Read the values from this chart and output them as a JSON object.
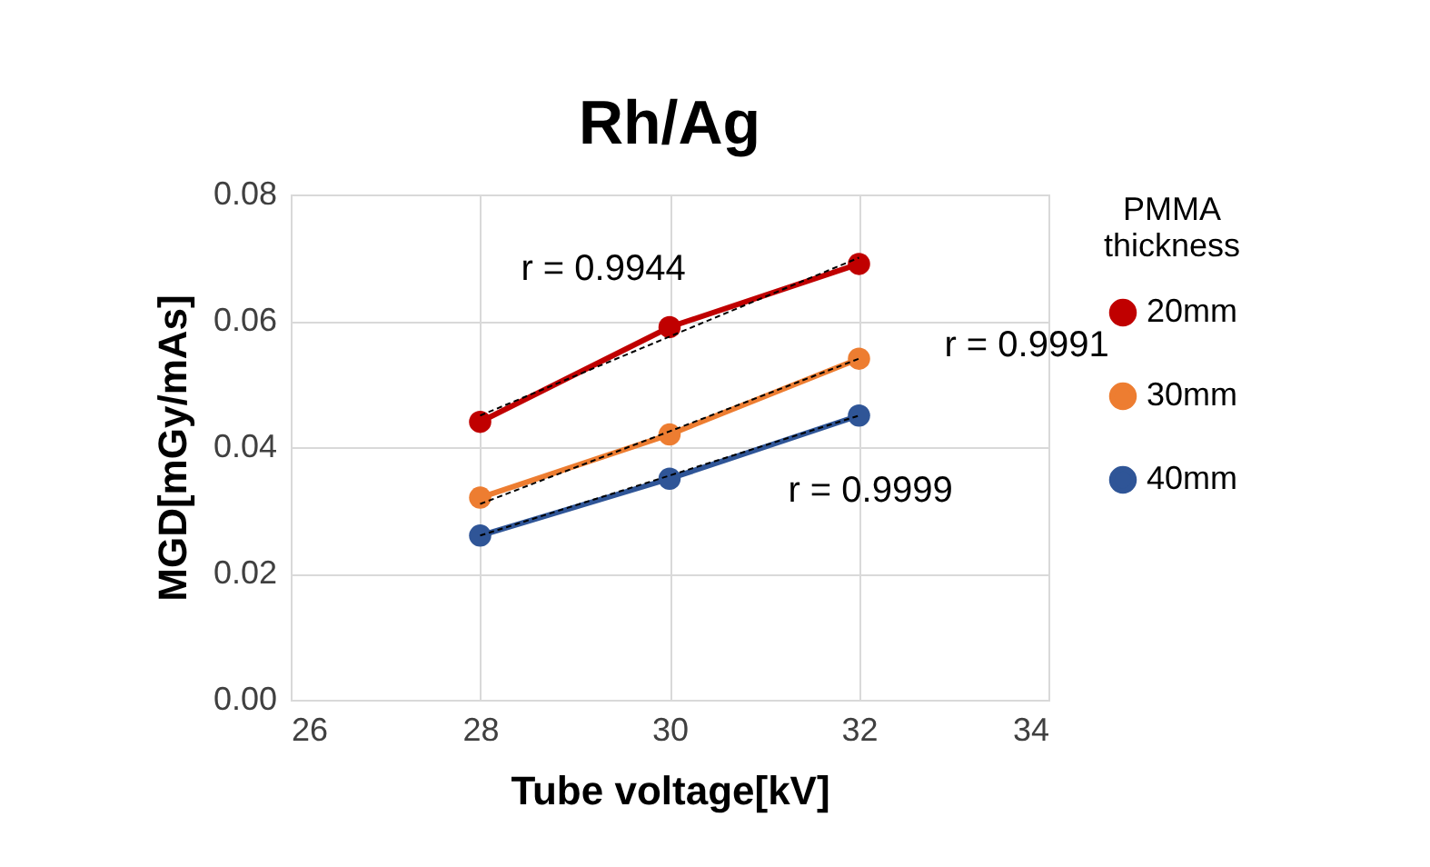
{
  "chart_data": {
    "type": "line",
    "title": "Rh/Ag",
    "xlabel": "Tube voltage[kV]",
    "ylabel": "MGD[mGy/mAs]",
    "legend_title": "PMMA thickness",
    "x": [
      28,
      30,
      32
    ],
    "series": [
      {
        "name": "20mm",
        "color": "#c00000",
        "values": [
          0.044,
          0.059,
          0.069
        ]
      },
      {
        "name": "30mm",
        "color": "#ed7d31",
        "values": [
          0.032,
          0.042,
          0.054
        ]
      },
      {
        "name": "40mm",
        "color": "#2f5597",
        "values": [
          0.026,
          0.035,
          0.045
        ]
      },
      {
        "type": "line",
        "color": "#000000",
        "line_style": "dashed",
        "marker": "none",
        "values": [
          0.045,
          0.0575,
          0.07
        ]
      },
      {
        "type": "line",
        "color": "#000000",
        "line_style": "dashed",
        "marker": "none",
        "values": [
          0.031,
          0.0425,
          0.054
        ]
      },
      {
        "type": "line",
        "color": "#000000",
        "line_style": "dashed",
        "marker": "none",
        "values": [
          0.026,
          0.0355,
          0.045
        ]
      }
    ],
    "annotations": [
      "r = 0.9944",
      "r = 0.9991",
      "r = 0.9999"
    ],
    "xlim": [
      26,
      34
    ],
    "xticks": [
      26,
      28,
      30,
      32,
      34
    ],
    "ylim": [
      0,
      0.08
    ],
    "yticks": [
      {
        "value": 0,
        "label": "0.00"
      },
      0.02,
      0.04,
      0.06,
      0.08
    ],
    "grid": true,
    "legend": "right",
    "marker": "circle",
    "line_style": "solid"
  }
}
